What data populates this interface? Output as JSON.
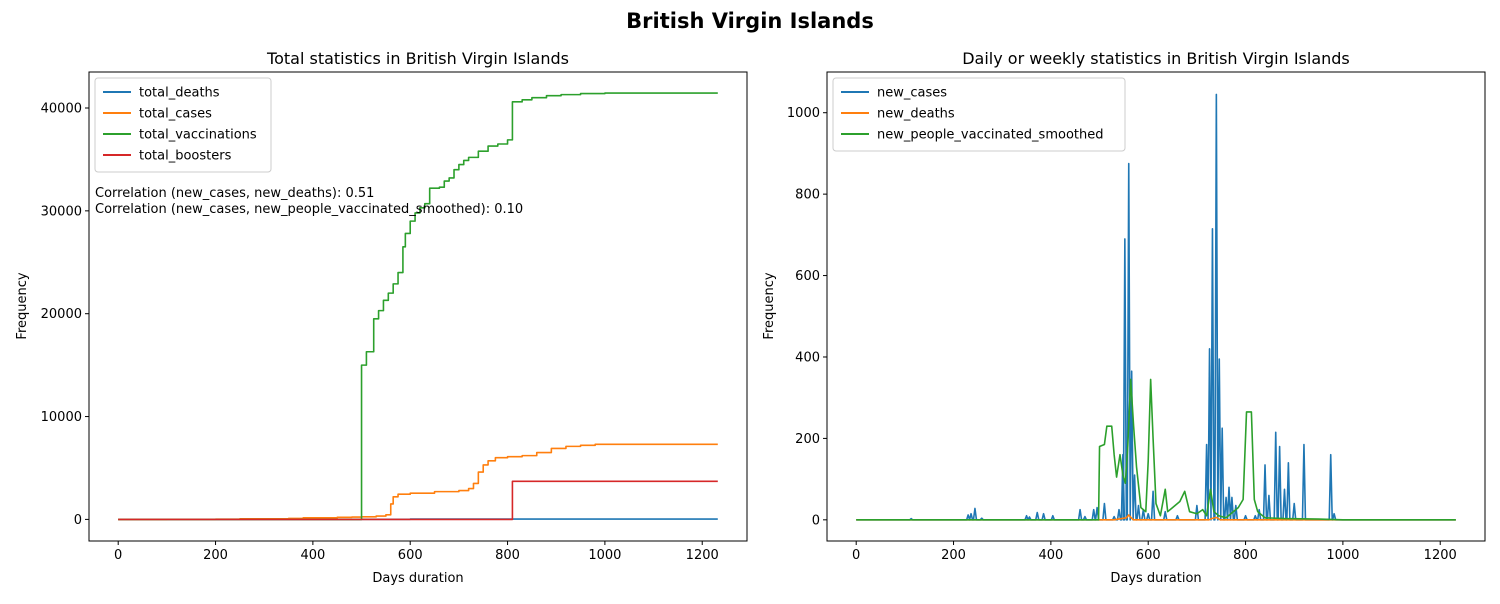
{
  "figure": {
    "suptitle": "British Virgin Islands"
  },
  "chart_data": [
    {
      "type": "line",
      "title": "Total statistics in British Virgin Islands",
      "xlabel": "Days duration",
      "ylabel": "Frequency",
      "xlim": [
        -60,
        1292
      ],
      "ylim": [
        -2100,
        43500
      ],
      "xticks": [
        0,
        200,
        400,
        600,
        800,
        1000,
        1200
      ],
      "yticks": [
        0,
        10000,
        20000,
        30000,
        40000
      ],
      "grid": false,
      "legend_position": "upper-left",
      "annotations": [
        "Correlation (new_cases, new_deaths): 0.51",
        "Correlation (new_cases, new_people_vaccinated_smoothed): 0.10"
      ],
      "series": [
        {
          "name": "total_deaths",
          "color": "#1f77b4",
          "step": true,
          "points": [
            [
              0,
              0
            ],
            [
              300,
              0
            ],
            [
              500,
              10
            ],
            [
              600,
              30
            ],
            [
              720,
              35
            ],
            [
              810,
              37
            ],
            [
              1232,
              37
            ]
          ]
        },
        {
          "name": "total_cases",
          "color": "#ff7f0e",
          "step": true,
          "points": [
            [
              0,
              0
            ],
            [
              100,
              10
            ],
            [
              200,
              20
            ],
            [
              250,
              60
            ],
            [
              350,
              100
            ],
            [
              380,
              150
            ],
            [
              450,
              200
            ],
            [
              480,
              230
            ],
            [
              500,
              250
            ],
            [
              530,
              320
            ],
            [
              550,
              450
            ],
            [
              560,
              1500
            ],
            [
              565,
              2200
            ],
            [
              575,
              2450
            ],
            [
              600,
              2550
            ],
            [
              650,
              2700
            ],
            [
              700,
              2800
            ],
            [
              720,
              3000
            ],
            [
              730,
              3500
            ],
            [
              740,
              4600
            ],
            [
              750,
              5300
            ],
            [
              760,
              5700
            ],
            [
              775,
              6000
            ],
            [
              800,
              6100
            ],
            [
              830,
              6200
            ],
            [
              860,
              6500
            ],
            [
              890,
              6900
            ],
            [
              920,
              7100
            ],
            [
              950,
              7200
            ],
            [
              980,
              7300
            ],
            [
              1232,
              7300
            ]
          ]
        },
        {
          "name": "total_vaccinations",
          "color": "#2ca02c",
          "step": true,
          "points": [
            [
              0,
              0
            ],
            [
              498,
              0
            ],
            [
              500,
              15000
            ],
            [
              510,
              16300
            ],
            [
              525,
              19500
            ],
            [
              535,
              20300
            ],
            [
              545,
              21300
            ],
            [
              555,
              22000
            ],
            [
              565,
              22900
            ],
            [
              575,
              24000
            ],
            [
              585,
              26500
            ],
            [
              590,
              27800
            ],
            [
              600,
              29000
            ],
            [
              610,
              29800
            ],
            [
              620,
              30300
            ],
            [
              630,
              30700
            ],
            [
              640,
              32200
            ],
            [
              660,
              32300
            ],
            [
              670,
              32900
            ],
            [
              680,
              33200
            ],
            [
              690,
              34000
            ],
            [
              700,
              34500
            ],
            [
              710,
              34900
            ],
            [
              720,
              35200
            ],
            [
              740,
              35800
            ],
            [
              760,
              36300
            ],
            [
              780,
              36500
            ],
            [
              800,
              36900
            ],
            [
              810,
              40600
            ],
            [
              830,
              40800
            ],
            [
              850,
              41000
            ],
            [
              880,
              41200
            ],
            [
              910,
              41300
            ],
            [
              950,
              41400
            ],
            [
              1000,
              41450
            ],
            [
              1232,
              41450
            ]
          ]
        },
        {
          "name": "total_boosters",
          "color": "#d62728",
          "step": true,
          "points": [
            [
              0,
              0
            ],
            [
              808,
              0
            ],
            [
              810,
              3700
            ],
            [
              1232,
              3700
            ]
          ]
        }
      ]
    },
    {
      "type": "line",
      "title": "Daily or weekly statistics in British Virgin Islands",
      "xlabel": "Days duration",
      "ylabel": "Frequency",
      "xlim": [
        -60,
        1292
      ],
      "ylim": [
        -52,
        1100
      ],
      "xticks": [
        0,
        200,
        400,
        600,
        800,
        1000,
        1200
      ],
      "yticks": [
        0,
        200,
        400,
        600,
        800,
        1000
      ],
      "grid": false,
      "legend_position": "upper-left",
      "series": [
        {
          "name": "new_cases",
          "color": "#1f77b4",
          "spikes": [
            [
              113,
              3
            ],
            [
              230,
              12
            ],
            [
              236,
              15
            ],
            [
              244,
              28
            ],
            [
              258,
              4
            ],
            [
              350,
              10
            ],
            [
              356,
              7
            ],
            [
              372,
              18
            ],
            [
              385,
              15
            ],
            [
              404,
              10
            ],
            [
              460,
              25
            ],
            [
              470,
              8
            ],
            [
              488,
              25
            ],
            [
              495,
              30
            ],
            [
              510,
              40
            ],
            [
              530,
              8
            ],
            [
              540,
              25
            ],
            [
              548,
              160
            ],
            [
              552,
              690
            ],
            [
              560,
              875
            ],
            [
              566,
              365
            ],
            [
              572,
              110
            ],
            [
              580,
              35
            ],
            [
              590,
              25
            ],
            [
              600,
              15
            ],
            [
              610,
              70
            ],
            [
              635,
              20
            ],
            [
              660,
              10
            ],
            [
              700,
              35
            ],
            [
              720,
              185
            ],
            [
              726,
              420
            ],
            [
              732,
              715
            ],
            [
              740,
              1045
            ],
            [
              746,
              395
            ],
            [
              752,
              225
            ],
            [
              760,
              55
            ],
            [
              766,
              80
            ],
            [
              772,
              55
            ],
            [
              780,
              35
            ],
            [
              800,
              10
            ],
            [
              820,
              10
            ],
            [
              828,
              25
            ],
            [
              840,
              135
            ],
            [
              848,
              60
            ],
            [
              862,
              215
            ],
            [
              870,
              180
            ],
            [
              880,
              75
            ],
            [
              888,
              140
            ],
            [
              900,
              40
            ],
            [
              920,
              185
            ],
            [
              975,
              160
            ],
            [
              982,
              15
            ]
          ]
        },
        {
          "name": "new_deaths",
          "color": "#ff7f0e",
          "points": [
            [
              0,
              0
            ],
            [
              530,
              0
            ],
            [
              555,
              5
            ],
            [
              560,
              12
            ],
            [
              565,
              5
            ],
            [
              570,
              0
            ],
            [
              725,
              0
            ],
            [
              730,
              3
            ],
            [
              740,
              6
            ],
            [
              748,
              0
            ],
            [
              1232,
              0
            ]
          ]
        },
        {
          "name": "new_people_vaccinated_smoothed",
          "color": "#2ca02c",
          "points": [
            [
              0,
              0
            ],
            [
              498,
              0
            ],
            [
              500,
              180
            ],
            [
              510,
              185
            ],
            [
              515,
              230
            ],
            [
              525,
              230
            ],
            [
              530,
              160
            ],
            [
              535,
              105
            ],
            [
              542,
              160
            ],
            [
              548,
              110
            ],
            [
              553,
              90
            ],
            [
              558,
              180
            ],
            [
              564,
              345
            ],
            [
              570,
              230
            ],
            [
              576,
              130
            ],
            [
              585,
              30
            ],
            [
              595,
              20
            ],
            [
              600,
              145
            ],
            [
              605,
              345
            ],
            [
              610,
              200
            ],
            [
              616,
              40
            ],
            [
              625,
              10
            ],
            [
              635,
              75
            ],
            [
              640,
              20
            ],
            [
              650,
              30
            ],
            [
              665,
              45
            ],
            [
              675,
              70
            ],
            [
              685,
              20
            ],
            [
              700,
              15
            ],
            [
              712,
              25
            ],
            [
              720,
              10
            ],
            [
              728,
              75
            ],
            [
              735,
              20
            ],
            [
              745,
              10
            ],
            [
              760,
              5
            ],
            [
              785,
              30
            ],
            [
              795,
              50
            ],
            [
              802,
              265
            ],
            [
              812,
              265
            ],
            [
              818,
              50
            ],
            [
              825,
              20
            ],
            [
              840,
              5
            ],
            [
              880,
              3
            ],
            [
              950,
              2
            ],
            [
              1000,
              0
            ],
            [
              1232,
              0
            ]
          ]
        }
      ]
    }
  ]
}
